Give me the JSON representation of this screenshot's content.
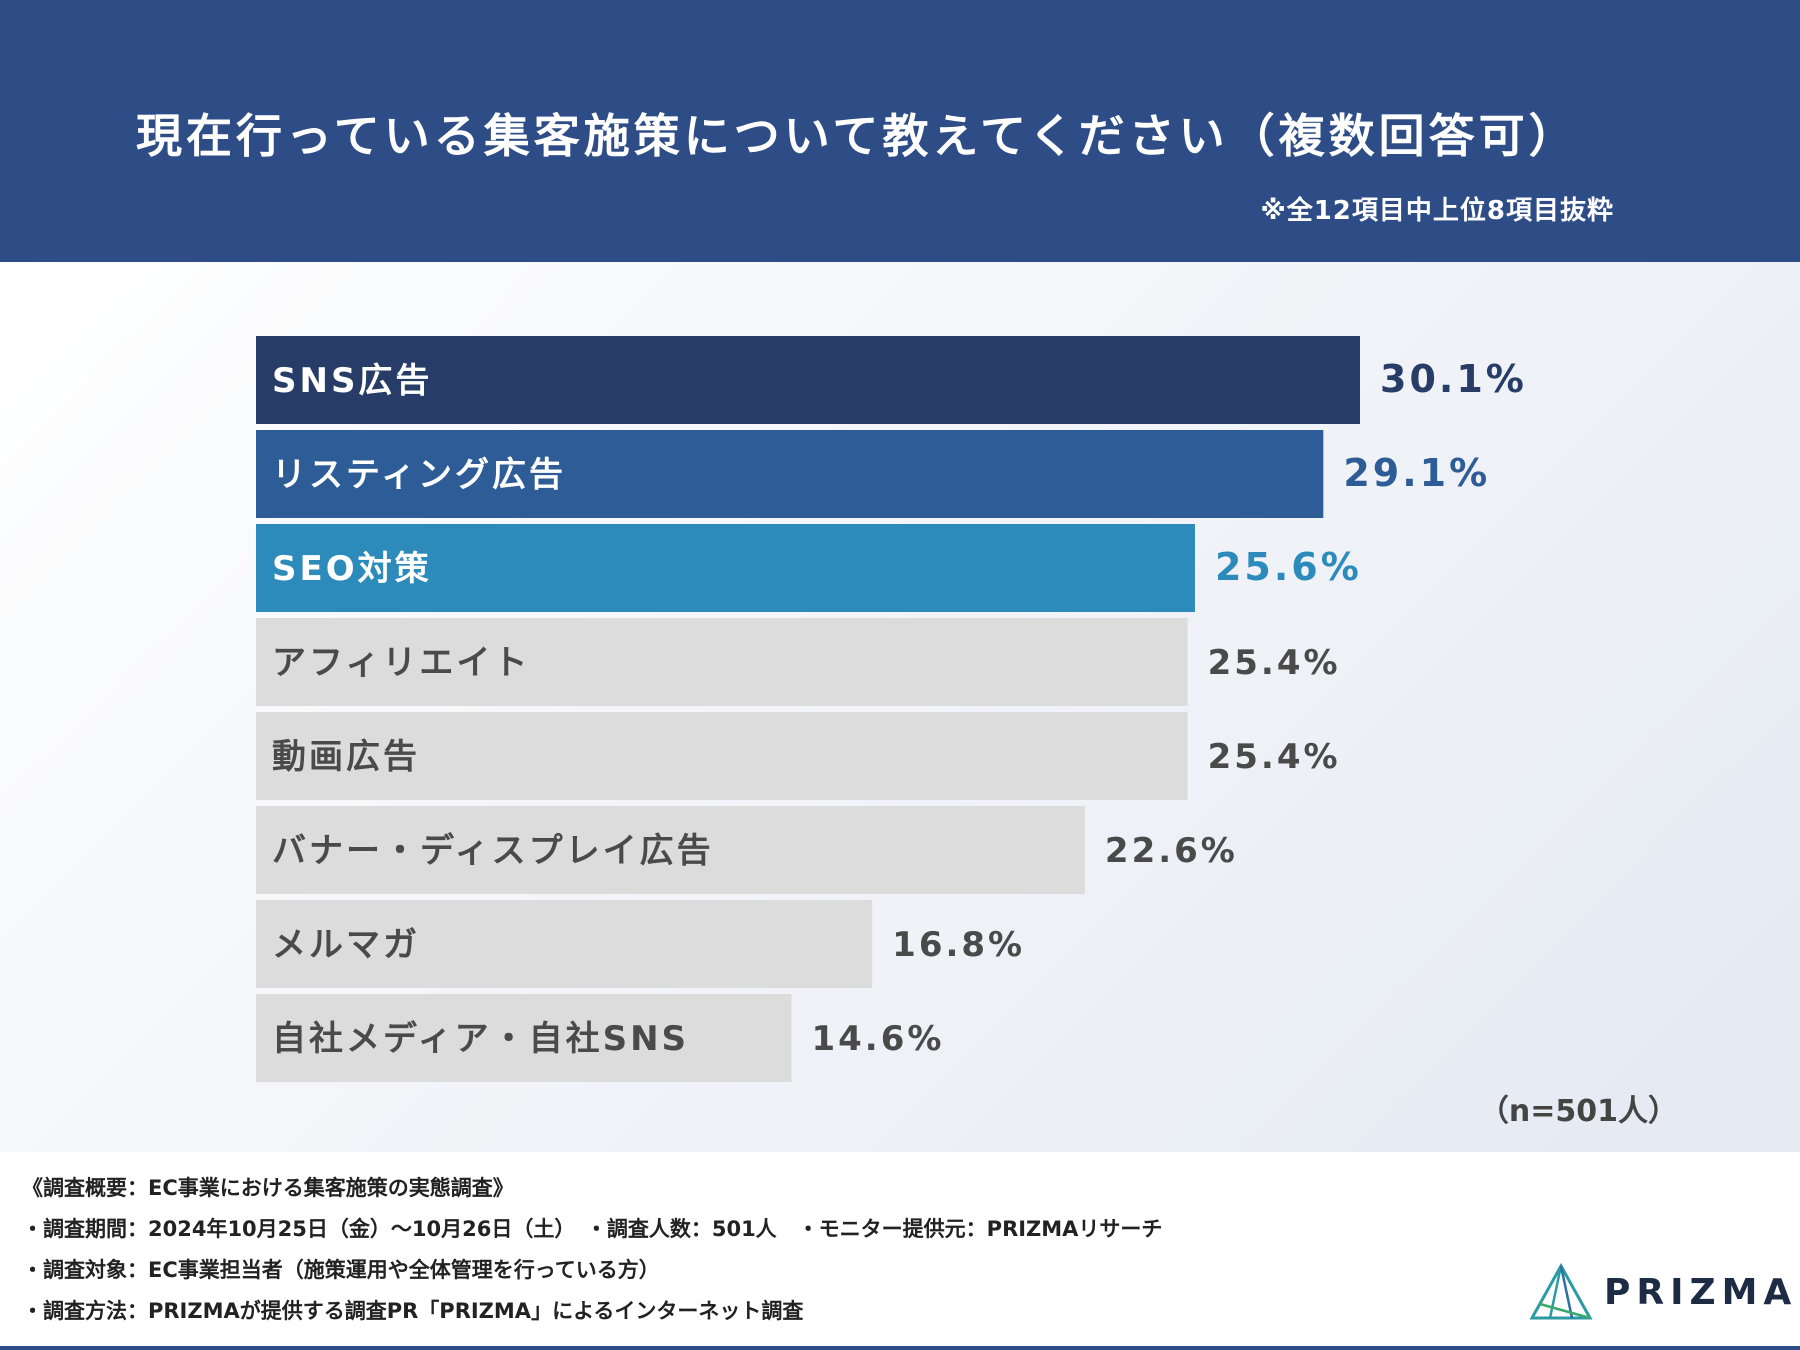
{
  "header": {
    "title": "現在行っている集客施策について教えてください（複数回答可）",
    "note": "※全12項目中上位8項目抜粋"
  },
  "chart_data": {
    "type": "bar",
    "orientation": "horizontal",
    "title": "現在行っている集客施策について教えてください（複数回答可）",
    "subtitle": "※全12項目中上位8項目抜粋",
    "unit": "%",
    "xlim": [
      0,
      30.1
    ],
    "categories": [
      "SNS広告",
      "リスティング広告",
      "SEO対策",
      "アフィリエイト",
      "動画広告",
      "バナー・ディスプレイ広告",
      "メルマガ",
      "自社メディア・自社SNS"
    ],
    "values": [
      30.1,
      29.1,
      25.6,
      25.4,
      25.4,
      22.6,
      16.8,
      14.6
    ],
    "value_labels": [
      "30.1%",
      "29.1%",
      "25.6%",
      "25.4%",
      "25.4%",
      "22.6%",
      "16.8%",
      "14.6%"
    ],
    "bar_colors": [
      "#273d67",
      "#2d5c96",
      "#2c8bbb",
      "#dcdcdc",
      "#dcdcdc",
      "#dcdcdc",
      "#dcdcdc",
      "#dcdcdc"
    ],
    "label_colors": [
      "#ffffff",
      "#ffffff",
      "#ffffff",
      "#4a4a4a",
      "#4a4a4a",
      "#4a4a4a",
      "#4a4a4a",
      "#4a4a4a"
    ],
    "value_colors": [
      "#273d67",
      "#2d5c96",
      "#2c8bbb",
      "#4a4a4a",
      "#4a4a4a",
      "#4a4a4a",
      "#4a4a4a",
      "#4a4a4a"
    ],
    "sample_size": "（n=501人）"
  },
  "footer": {
    "line1": "《調査概要：EC事業における集客施策の実態調査》",
    "line2": "・調査期間：2024年10月25日（金）〜10月26日（土）　・調査人数：501人　・モニター提供元：PRIZMAリサーチ",
    "line3": "・調査対象：EC事業担当者（施策運用や全体管理を行っている方）",
    "line4": "・調査方法：PRIZMAが提供する調査PR「PRIZMA」によるインターネット調査"
  },
  "logo": {
    "text": "PRIZMA"
  }
}
